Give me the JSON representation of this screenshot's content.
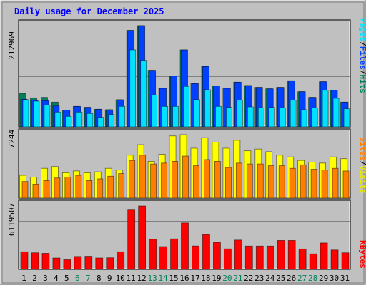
{
  "title": "Daily usage for December 2025",
  "colors": {
    "background": "#c0c0c0",
    "title": "#0000ff",
    "hits": "#00805c",
    "files": "#0040ff",
    "pages": "#00e0ff",
    "visits": "#ffff00",
    "sites": "#ff8000",
    "kbytes": "#ff0000",
    "weekday_label": "#000000",
    "weekend_label": "#00805c"
  },
  "chart_data": [
    {
      "type": "bar",
      "name": "hits-files-pages",
      "categories": [
        "1",
        "2",
        "3",
        "4",
        "5",
        "6",
        "7",
        "8",
        "9",
        "10",
        "11",
        "12",
        "13",
        "14",
        "15",
        "16",
        "17",
        "18",
        "19",
        "20",
        "21",
        "22",
        "23",
        "24",
        "25",
        "26",
        "27",
        "28",
        "29",
        "30",
        "31"
      ],
      "weekend_days": [
        "6",
        "7",
        "13",
        "14",
        "20",
        "21",
        "27",
        "28"
      ],
      "y_max_label": "212969",
      "ylim": [
        0,
        212969
      ],
      "ylabel_parts": [
        "Pages",
        "/",
        "Files",
        "/",
        "Hits"
      ],
      "series": [
        {
          "name": "Hits",
          "values": [
            70000,
            61000,
            62000,
            52000,
            35000,
            43000,
            41000,
            37000,
            36000,
            57000,
            203000,
            212969,
            119000,
            81000,
            107000,
            162000,
            91000,
            127000,
            86000,
            81000,
            94000,
            87000,
            83000,
            80000,
            83000,
            97000,
            74000,
            62000,
            95000,
            77000,
            52000
          ]
        },
        {
          "name": "Files",
          "values": [
            58000,
            56000,
            55000,
            44000,
            35000,
            43000,
            41000,
            37000,
            36000,
            57000,
            203000,
            212969,
            119000,
            81000,
            107000,
            162000,
            91000,
            127000,
            86000,
            81000,
            94000,
            87000,
            83000,
            80000,
            83000,
            97000,
            74000,
            62000,
            95000,
            77000,
            52000
          ]
        },
        {
          "name": "Pages",
          "values": [
            57000,
            54000,
            46000,
            31000,
            22000,
            31000,
            28000,
            20000,
            26000,
            43000,
            162000,
            140000,
            67000,
            43000,
            43000,
            85000,
            57000,
            78000,
            43000,
            41000,
            56000,
            42000,
            40000,
            41000,
            40000,
            56000,
            36000,
            40000,
            77000,
            60000,
            38000
          ]
        }
      ]
    },
    {
      "type": "bar",
      "name": "visits-sites",
      "categories": [
        "1",
        "2",
        "3",
        "4",
        "5",
        "6",
        "7",
        "8",
        "9",
        "10",
        "11",
        "12",
        "13",
        "14",
        "15",
        "16",
        "17",
        "18",
        "19",
        "20",
        "21",
        "22",
        "23",
        "24",
        "25",
        "26",
        "27",
        "28",
        "29",
        "30",
        "31"
      ],
      "y_max_label": "7244",
      "ylim": [
        0,
        7244
      ],
      "ylabel_parts": [
        "Sites",
        "/",
        "Visits"
      ],
      "series": [
        {
          "name": "Visits",
          "values": [
            2600,
            2400,
            3400,
            3600,
            2900,
            3100,
            2900,
            3000,
            3400,
            3200,
            4900,
            6100,
            4200,
            5000,
            7100,
            7244,
            5700,
            6900,
            6400,
            5700,
            6600,
            5400,
            5600,
            5300,
            4900,
            4700,
            4300,
            4100,
            4000,
            4700,
            4500
          ]
        },
        {
          "name": "Sites",
          "values": [
            1900,
            1600,
            2000,
            2300,
            2400,
            2600,
            2000,
            2200,
            2500,
            2800,
            4300,
            4900,
            3900,
            4000,
            4200,
            4800,
            3700,
            4400,
            4200,
            3500,
            4000,
            3900,
            3900,
            3700,
            3700,
            3400,
            3800,
            3300,
            3200,
            3400,
            3100
          ]
        }
      ]
    },
    {
      "type": "bar",
      "name": "kbytes",
      "categories": [
        "1",
        "2",
        "3",
        "4",
        "5",
        "6",
        "7",
        "8",
        "9",
        "10",
        "11",
        "12",
        "13",
        "14",
        "15",
        "16",
        "17",
        "18",
        "19",
        "20",
        "21",
        "22",
        "23",
        "24",
        "25",
        "26",
        "27",
        "28",
        "29",
        "30",
        "31"
      ],
      "y_max_label": "6119507",
      "ylim": [
        0,
        6119507
      ],
      "ylabel_parts": [
        "KBytes"
      ],
      "series": [
        {
          "name": "KBytes",
          "values": [
            1700000,
            1600000,
            1550000,
            1100000,
            930000,
            1250000,
            1270000,
            1100000,
            1120000,
            1700000,
            5730000,
            6119507,
            2900000,
            2200000,
            2940000,
            4480000,
            2260000,
            3350000,
            2600000,
            1980000,
            2830000,
            2250000,
            2250000,
            2250000,
            2790000,
            2790000,
            1970000,
            1500000,
            2550000,
            1870000,
            1600000
          ]
        }
      ]
    }
  ]
}
